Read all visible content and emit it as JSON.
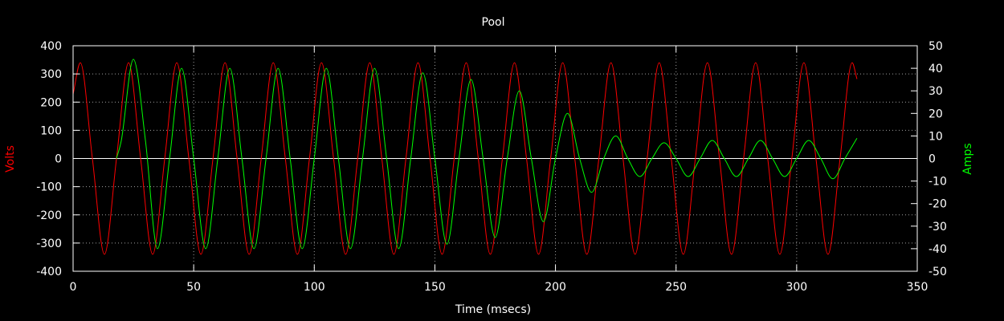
{
  "chart_data": {
    "type": "line",
    "title": "Pool",
    "xlabel": "Time (msecs)",
    "ylabel_left": "Volts",
    "ylabel_right": "Amps",
    "xlim": [
      0,
      350
    ],
    "ylim_left": [
      -400,
      400
    ],
    "ylim_right": [
      -50,
      50
    ],
    "x_ticks": [
      0,
      50,
      100,
      150,
      200,
      250,
      300,
      350
    ],
    "y_left_ticks": [
      -400,
      -300,
      -200,
      -100,
      0,
      100,
      200,
      300,
      400
    ],
    "y_right_ticks": [
      -50,
      -40,
      -30,
      -20,
      -10,
      0,
      10,
      20,
      30,
      40,
      50
    ],
    "grid": true,
    "colors": {
      "background": "#000000",
      "axes": "#ffffff",
      "grid": "#a0a0a0",
      "volts": "#ff0000",
      "amps": "#00ff00"
    },
    "series": [
      {
        "name": "Volts",
        "axis": "left",
        "x": [
          0,
          3,
          8,
          13,
          18,
          23,
          28,
          33,
          38,
          43,
          48,
          53,
          58,
          63,
          68,
          73,
          78,
          83,
          88,
          93,
          98,
          103,
          108,
          113,
          118,
          123,
          128,
          133,
          138,
          143,
          148,
          153,
          158,
          163,
          168,
          173,
          178,
          183,
          188,
          193,
          198,
          203,
          208,
          213,
          218,
          223,
          228,
          233,
          238,
          243,
          248,
          253,
          258,
          263,
          268,
          273,
          278,
          283,
          288,
          293,
          298,
          303,
          308,
          313,
          318,
          323,
          325
        ],
        "values": [
          228,
          340,
          0,
          -340,
          0,
          340,
          0,
          -340,
          0,
          340,
          0,
          -340,
          0,
          340,
          0,
          -340,
          0,
          340,
          0,
          -340,
          0,
          340,
          0,
          -340,
          0,
          340,
          0,
          -340,
          0,
          340,
          0,
          -340,
          0,
          340,
          0,
          -340,
          0,
          340,
          0,
          -340,
          0,
          340,
          0,
          -340,
          0,
          340,
          0,
          -340,
          0,
          340,
          0,
          -340,
          0,
          340,
          0,
          -340,
          0,
          340,
          0,
          -340,
          0,
          340,
          0,
          -340,
          0,
          340,
          282
        ]
      },
      {
        "name": "Amps",
        "axis": "right",
        "x": [
          18,
          20,
          25,
          30,
          35,
          40,
          45,
          50,
          55,
          60,
          65,
          70,
          75,
          80,
          85,
          90,
          95,
          100,
          105,
          110,
          115,
          120,
          125,
          130,
          135,
          140,
          145,
          150,
          155,
          160,
          165,
          170,
          175,
          180,
          185,
          190,
          195,
          200,
          205,
          210,
          215,
          220,
          225,
          230,
          235,
          240,
          245,
          250,
          255,
          260,
          265,
          270,
          275,
          280,
          285,
          290,
          295,
          300,
          305,
          310,
          315,
          320,
          325
        ],
        "values": [
          0,
          8,
          44,
          8,
          -40,
          0,
          40,
          0,
          -40,
          0,
          40,
          0,
          -40,
          0,
          40,
          0,
          -40,
          0,
          40,
          0,
          -40,
          0,
          40,
          0,
          -40,
          0,
          38,
          0,
          -38,
          0,
          35,
          0,
          -35,
          0,
          30,
          0,
          -28,
          0,
          20,
          0,
          -15,
          0,
          10,
          0,
          -8,
          0,
          7,
          0,
          -8,
          0,
          8,
          0,
          -8,
          0,
          8,
          0,
          -8,
          0,
          8,
          0,
          -9,
          0,
          9
        ]
      }
    ]
  }
}
